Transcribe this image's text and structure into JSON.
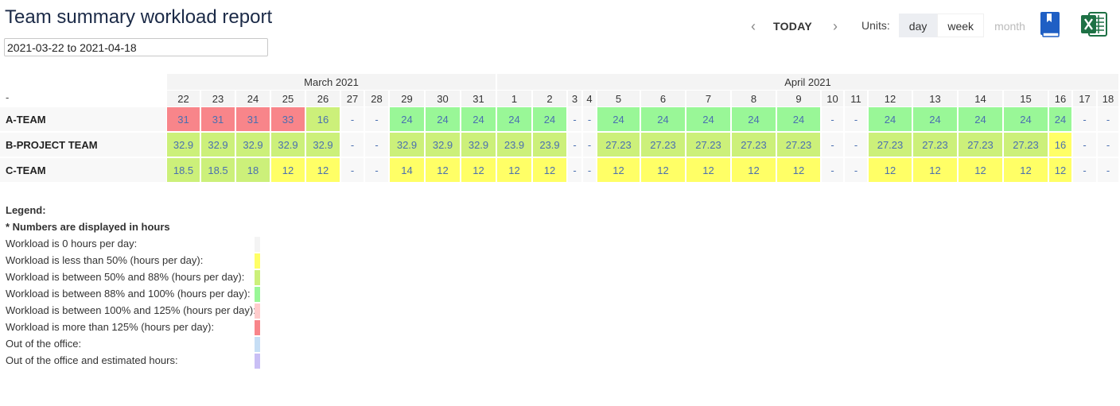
{
  "header": {
    "title": "Team summary workload report",
    "date_range": "2021-03-22 to 2021-04-18",
    "nav": {
      "prev_icon": "chevron-left-icon",
      "today_label": "TODAY",
      "next_icon": "chevron-right-icon"
    },
    "units": {
      "label": "Units:",
      "options": [
        {
          "label": "day",
          "state": "active"
        },
        {
          "label": "week",
          "state": "normal"
        },
        {
          "label": "month",
          "state": "disabled"
        }
      ]
    },
    "icons": {
      "manual": "book-icon",
      "export": "excel-icon"
    }
  },
  "colors": {
    "zero": "#f4f4f4",
    "lt50": "#ffff66",
    "p50_88": "#ccf07a",
    "p88_100": "#99f797",
    "p100_125": "#ffcccc",
    "gt125": "#f8858a",
    "ooo": "#c6def5",
    "ooo_est": "#c9bff5"
  },
  "grid": {
    "row_label_header": "-",
    "months": [
      {
        "label": "March 2021",
        "span": 10
      },
      {
        "label": "April 2021",
        "span": 18
      }
    ],
    "days": [
      "22",
      "23",
      "24",
      "25",
      "26",
      "27",
      "28",
      "29",
      "30",
      "31",
      "1",
      "2",
      "3",
      "4",
      "5",
      "6",
      "7",
      "8",
      "9",
      "10",
      "11",
      "12",
      "13",
      "14",
      "15",
      "16",
      "17",
      "18"
    ],
    "rows": [
      {
        "team": "A-TEAM",
        "values": [
          "31",
          "31",
          "31",
          "33",
          "16",
          "-",
          "-",
          "24",
          "24",
          "24",
          "24",
          "24",
          "-",
          "-",
          "24",
          "24",
          "24",
          "24",
          "24",
          "-",
          "-",
          "24",
          "24",
          "24",
          "24",
          "24",
          "-",
          "-"
        ],
        "levels": [
          "gt125",
          "gt125",
          "gt125",
          "gt125",
          "p50_88",
          "zero",
          "zero",
          "p88_100",
          "p88_100",
          "p88_100",
          "p88_100",
          "p88_100",
          "zero",
          "zero",
          "p88_100",
          "p88_100",
          "p88_100",
          "p88_100",
          "p88_100",
          "zero",
          "zero",
          "p88_100",
          "p88_100",
          "p88_100",
          "p88_100",
          "p88_100",
          "zero",
          "zero"
        ]
      },
      {
        "team": "B-PROJECT TEAM",
        "values": [
          "32.9",
          "32.9",
          "32.9",
          "32.9",
          "32.9",
          "-",
          "-",
          "32.9",
          "32.9",
          "32.9",
          "23.9",
          "23.9",
          "-",
          "-",
          "27.23",
          "27.23",
          "27.23",
          "27.23",
          "27.23",
          "-",
          "-",
          "27.23",
          "27.23",
          "27.23",
          "27.23",
          "16",
          "-",
          "-"
        ],
        "levels": [
          "p50_88",
          "p50_88",
          "p50_88",
          "p50_88",
          "p50_88",
          "zero",
          "zero",
          "p50_88",
          "p50_88",
          "p50_88",
          "p50_88",
          "p50_88",
          "zero",
          "zero",
          "p50_88",
          "p50_88",
          "p50_88",
          "p50_88",
          "p50_88",
          "zero",
          "zero",
          "p50_88",
          "p50_88",
          "p50_88",
          "p50_88",
          "lt50",
          "zero",
          "zero"
        ]
      },
      {
        "team": "C-TEAM",
        "values": [
          "18.5",
          "18.5",
          "18",
          "12",
          "12",
          "-",
          "-",
          "14",
          "12",
          "12",
          "12",
          "12",
          "-",
          "-",
          "12",
          "12",
          "12",
          "12",
          "12",
          "-",
          "-",
          "12",
          "12",
          "12",
          "12",
          "12",
          "-",
          "-"
        ],
        "levels": [
          "p50_88",
          "p50_88",
          "p50_88",
          "lt50",
          "lt50",
          "zero",
          "zero",
          "lt50",
          "lt50",
          "lt50",
          "lt50",
          "lt50",
          "zero",
          "zero",
          "lt50",
          "lt50",
          "lt50",
          "lt50",
          "lt50",
          "zero",
          "zero",
          "lt50",
          "lt50",
          "lt50",
          "lt50",
          "lt50",
          "zero",
          "zero"
        ]
      }
    ]
  },
  "legend": {
    "title": "Legend:",
    "note": "* Numbers are displayed in hours",
    "items": [
      {
        "label": "Workload is 0 hours per day:",
        "level": "zero"
      },
      {
        "label": "Workload is less than 50% (hours per day):",
        "level": "lt50"
      },
      {
        "label": "Workload is between 50% and 88% (hours per day):",
        "level": "p50_88"
      },
      {
        "label": "Workload is between 88% and 100% (hours per day):",
        "level": "p88_100"
      },
      {
        "label": "Workload is between 100% and 125% (hours per day):",
        "level": "p100_125"
      },
      {
        "label": "Workload is more than 125% (hours per day):",
        "level": "gt125"
      },
      {
        "label": "Out of the office:",
        "level": "ooo"
      },
      {
        "label": "Out of the office and estimated hours:",
        "level": "ooo_est"
      }
    ]
  }
}
